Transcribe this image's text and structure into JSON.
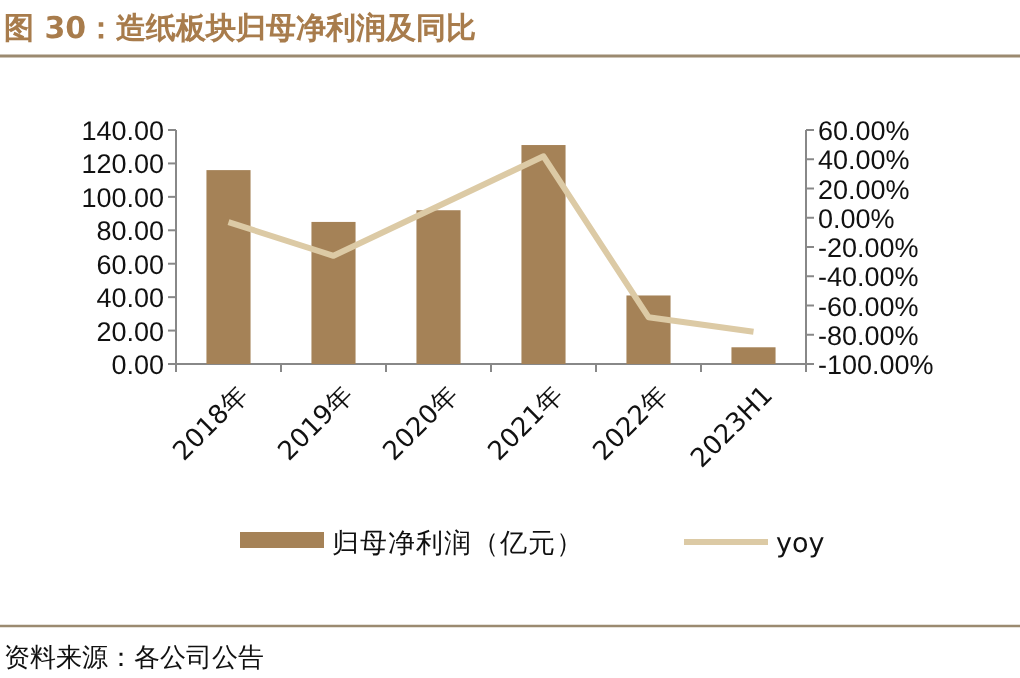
{
  "chart_data": {
    "type": "bar",
    "title": "图 30：造纸板块归母净利润及同比",
    "categories": [
      "2018年",
      "2019年",
      "2020年",
      "2021年",
      "2022年",
      "2023H1"
    ],
    "series": [
      {
        "name": "归母净利润（亿元）",
        "color": "#a58257",
        "values": [
          116,
          85,
          92,
          131,
          41,
          10
        ]
      },
      {
        "name": "yoy",
        "type": "line",
        "axis": "y2",
        "color": "#dccaa5",
        "values": [
          -3,
          -26,
          8,
          42,
          -68,
          -78
        ]
      }
    ],
    "ylim": [
      0,
      140
    ],
    "yticks": [
      {
        "value": 0,
        "label": "0.00"
      },
      {
        "value": 20,
        "label": "20.00"
      },
      {
        "value": 40,
        "label": "40.00"
      },
      {
        "value": 60,
        "label": "60.00"
      },
      {
        "value": 80,
        "label": "80.00"
      },
      {
        "value": 100,
        "label": "100.00"
      },
      {
        "value": 120,
        "label": "120.00"
      },
      {
        "value": 140,
        "label": "140.00"
      }
    ],
    "y2lim": [
      -100,
      60
    ],
    "y2ticks": [
      {
        "value": -100,
        "label": "-100.00%"
      },
      {
        "value": -80,
        "label": "-80.00%"
      },
      {
        "value": -60,
        "label": "-60.00%"
      },
      {
        "value": -40,
        "label": "-40.00%"
      },
      {
        "value": -20,
        "label": "-20.00%"
      },
      {
        "value": 0,
        "label": "0.00%"
      },
      {
        "value": 20,
        "label": "20.00%"
      },
      {
        "value": 40,
        "label": "40.00%"
      },
      {
        "value": 60,
        "label": "60.00%"
      }
    ],
    "legend": "bottom",
    "grid": false,
    "annotations": [
      "资料来源：各公司公告"
    ]
  }
}
